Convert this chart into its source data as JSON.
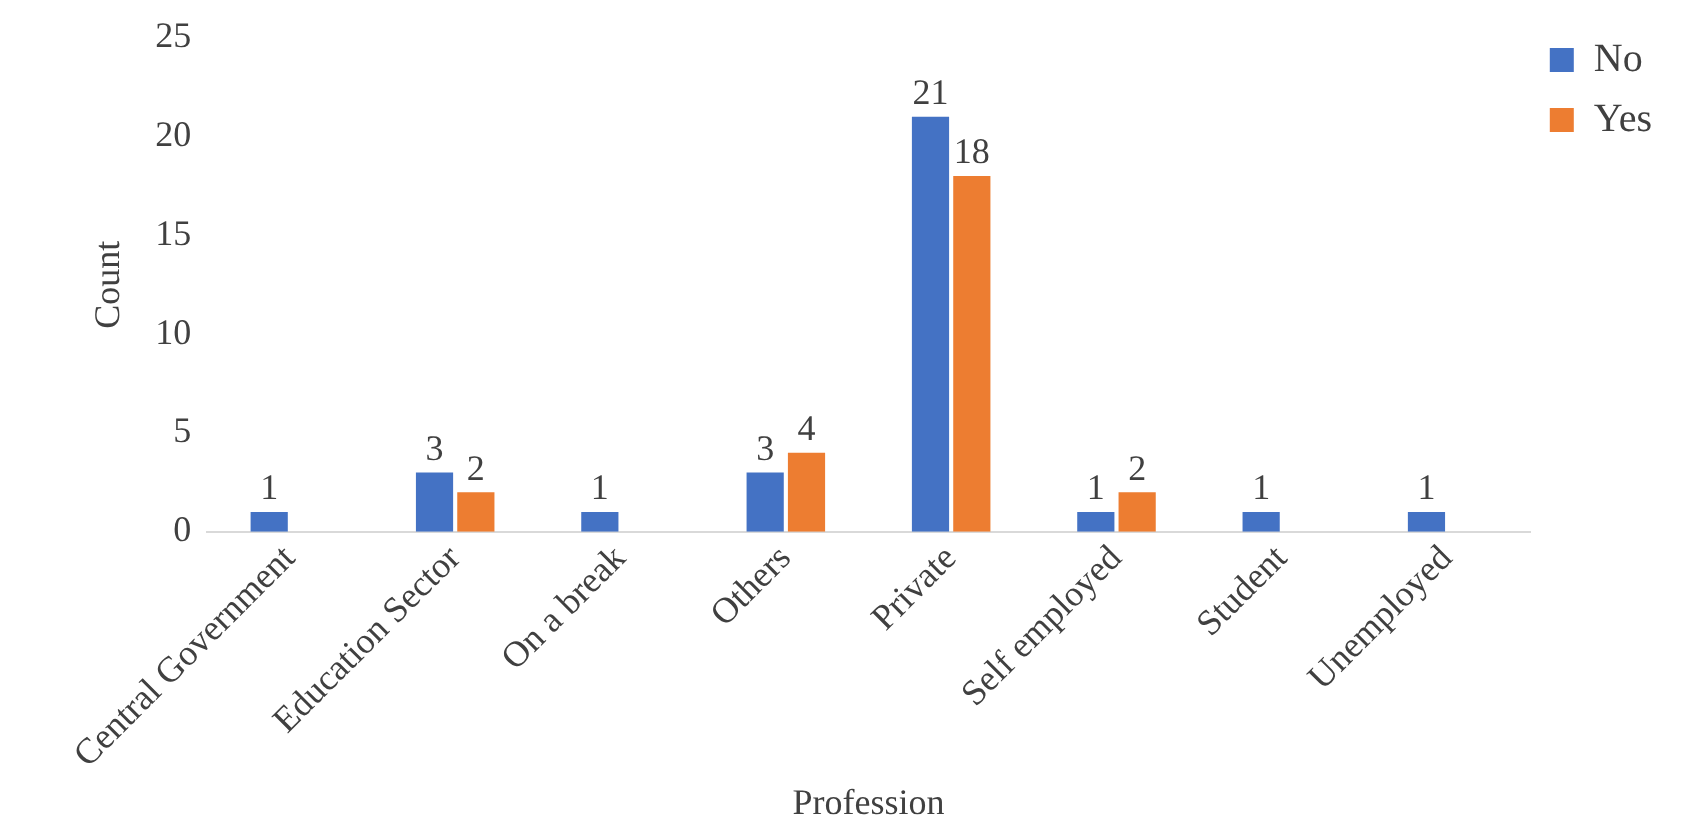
{
  "chart_data": {
    "type": "bar",
    "xlabel": "Profession",
    "ylabel": "Count",
    "categories": [
      "Central Government",
      "Education Sector",
      "On a break",
      "Others",
      "Private",
      "Self employed",
      "Student",
      "Unemployed"
    ],
    "series": [
      {
        "name": "No",
        "color": "#4472c4",
        "values": [
          1,
          3,
          1,
          3,
          21,
          1,
          1,
          1
        ]
      },
      {
        "name": "Yes",
        "color": "#ed7d31",
        "values": [
          null,
          2,
          null,
          4,
          18,
          2,
          null,
          null
        ]
      }
    ],
    "ylim": [
      0,
      25
    ],
    "yticks": [
      0,
      5,
      10,
      15,
      20,
      25
    ],
    "grid": false,
    "legend": "top right",
    "data_labels": true
  }
}
